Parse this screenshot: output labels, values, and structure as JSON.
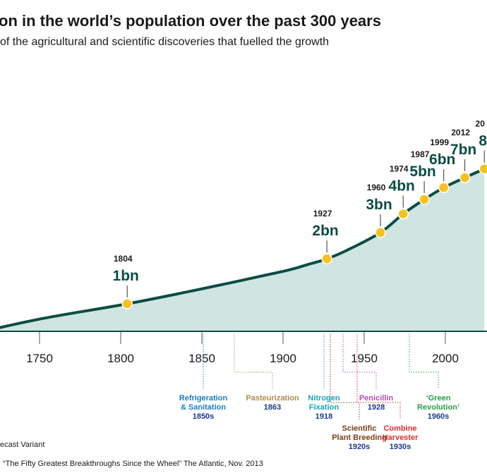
{
  "title": "on in the world’s population over the past 300 years",
  "subtitle": "of the agricultural and scientific discoveries that fuelled the growth",
  "chart_data": {
    "type": "area",
    "x_ticks": [
      "1750",
      "1800",
      "1850",
      "1900",
      "1950",
      "2000"
    ],
    "x": [
      1700,
      1750,
      1804,
      1850,
      1900,
      1915,
      1927,
      1940,
      1960,
      1974,
      1987,
      1999,
      2012,
      2024
    ],
    "y": [
      0.6,
      0.79,
      1,
      1.26,
      1.65,
      1.83,
      2,
      2.3,
      3,
      4,
      5,
      6,
      7,
      8
    ],
    "milestones": [
      {
        "year": "1804",
        "label": "1bn",
        "x": 1804,
        "y": 1
      },
      {
        "year": "1927",
        "label": "2bn",
        "x": 1927,
        "y": 2
      },
      {
        "year": "1960",
        "label": "3bn",
        "x": 1960,
        "y": 3
      },
      {
        "year": "1974",
        "label": "4bn",
        "x": 1974,
        "y": 4
      },
      {
        "year": "1987",
        "label": "5bn",
        "x": 1987,
        "y": 5
      },
      {
        "year": "1999",
        "label": "6bn",
        "x": 1999,
        "y": 6
      },
      {
        "year": "2012",
        "label": "7bn",
        "x": 2012,
        "y": 7
      },
      {
        "year": "20",
        "label": "8",
        "x": 2024,
        "y": 8
      }
    ],
    "discoveries": [
      {
        "name": "Refrigeration & Sanitation",
        "lines": [
          "Refrigeration",
          "& Sanitation"
        ],
        "date": "1850s",
        "x": 1850,
        "color": "#1a7dc0"
      },
      {
        "name": "Pasteurization",
        "lines": [
          "Pasteurization"
        ],
        "date": "1863",
        "x": 1863,
        "color": "#b08a4e"
      },
      {
        "name": "Nitrogen Fixation",
        "lines": [
          "Nitrogen",
          "Fixation"
        ],
        "date": "1918",
        "x": 1918,
        "color": "#1aa3b5"
      },
      {
        "name": "Scientific Plant Breeding",
        "lines": [
          "Scientific",
          "Plant Breeding"
        ],
        "date": "1920s",
        "x": 1920,
        "color": "#7a3e12"
      },
      {
        "name": "Penicillin",
        "lines": [
          "Penicillin"
        ],
        "date": "1928",
        "x": 1928,
        "color": "#b44cb0"
      },
      {
        "name": "Combine Harvester",
        "lines": [
          "Combine",
          "Harvester"
        ],
        "date": "1930s",
        "x": 1930,
        "color": "#e32b2b"
      },
      {
        "name": "Green Revolution",
        "lines": [
          "‘Green",
          "Revolution’"
        ],
        "date": "1960s",
        "x": 1960,
        "color": "#2aa045"
      }
    ],
    "colors": {
      "line": "#0b4c44",
      "fill": "#cfe5e2",
      "dot": "#f6c21c",
      "axis": "#0b4c44"
    }
  },
  "footer": {
    "legend_text": "ecast Variant",
    "source": "“The Fifty Greatest Breakthroughs Since the Wheel” The Atlantic, Nov. 2013"
  }
}
